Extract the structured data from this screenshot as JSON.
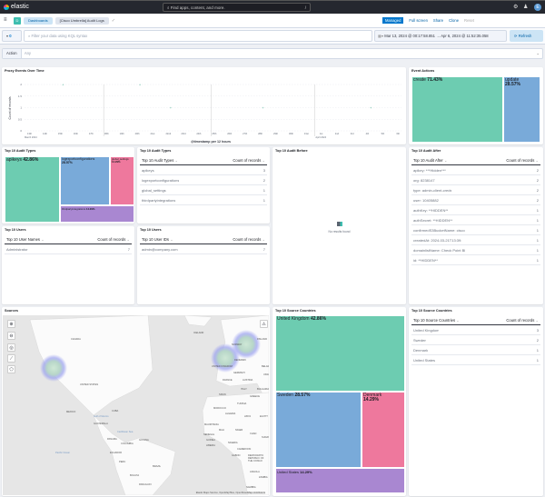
{
  "header": {
    "brand": "elastic",
    "search_placeholder": "Find apps, content, and more.",
    "search_shortcut": "/",
    "avatar": "E"
  },
  "breadcrumbs": [
    {
      "label": "Dashboards"
    },
    {
      "label": "[Cisco Umbrella] Audit Logs"
    }
  ],
  "actions": {
    "managed": "Managed",
    "fullscreen": "Full screen",
    "share": "Share",
    "clone": "Clone",
    "reset": "Reset"
  },
  "query": {
    "placeholder": "Filter your data using KQL syntax",
    "filter_count": "0",
    "date_start": "Mar 13, 2024 @ 00:17:58.851",
    "arrow": "→",
    "date_end": "Apr 6, 2024 @ 11:52:35.058",
    "refresh": "Refresh"
  },
  "filter": {
    "label": "Action",
    "value": "Any"
  },
  "proxy_chart": {
    "title": "Proxy Events Over Time"
  },
  "chart_data": [
    {
      "type": "scatter",
      "title": "Proxy Events Over Time",
      "xlabel": "@timestamp per 12 hours",
      "ylabel": "Count of records",
      "ylim": [
        0,
        2
      ],
      "yticks": [
        "0",
        "0.5",
        "1",
        "1.5",
        "2"
      ],
      "xticks": [
        "13th",
        "14th",
        "15th",
        "16th",
        "17th",
        "18th",
        "19th",
        "20th",
        "21st",
        "22nd",
        "23rd",
        "24th",
        "25th",
        "26th",
        "27th",
        "28th",
        "29th",
        "30th",
        "31st",
        "1st",
        "2nd",
        "3rd",
        "4th",
        "5th",
        "6th"
      ],
      "month_labels": [
        "March 2024",
        "April 2024"
      ],
      "points": [
        {
          "x": "2024-03-15",
          "y": 2
        },
        {
          "x": "2024-03-20",
          "y": 2
        },
        {
          "x": "2024-03-22",
          "y": 1
        },
        {
          "x": "2024-03-28",
          "y": 1
        },
        {
          "x": "2024-04-04",
          "y": 1
        }
      ]
    },
    {
      "type": "treemap",
      "title": "Event Actions",
      "slices": [
        {
          "label": "create",
          "pct": "71.43%",
          "value": 71.43
        },
        {
          "label": "update",
          "pct": "28.57%",
          "value": 28.57
        }
      ]
    },
    {
      "type": "treemap",
      "title": "Top 10 Audit Types",
      "slices": [
        {
          "label": "apikeys",
          "pct": "42.86%"
        },
        {
          "label": "logexportconfigurations",
          "pct": "28.57%"
        },
        {
          "label": "global_settings",
          "pct": "14.29%"
        },
        {
          "label": "thirdpartyintegrations",
          "pct": "14.29%"
        }
      ]
    },
    {
      "type": "treemap",
      "title": "Top 10 Source Countries",
      "slices": [
        {
          "label": "United Kingdom",
          "pct": "42.86%"
        },
        {
          "label": "Sweden",
          "pct": "28.57%"
        },
        {
          "label": "Denmark",
          "pct": "14.29%"
        },
        {
          "label": "United States",
          "pct": "14.29%"
        }
      ]
    }
  ],
  "tables": {
    "audit_types": {
      "title": "Top 10 Audit Types",
      "col1": "Top 10 Audit Types",
      "col2": "Count of records",
      "rows": [
        [
          "apikeys",
          "3"
        ],
        [
          "logexportconfigurations",
          "2"
        ],
        [
          "global_settings",
          "1"
        ],
        [
          "thirdpartyintegrations",
          "1"
        ]
      ]
    },
    "audit_before": {
      "title": "Top 10 Audit Before",
      "empty": "No results found"
    },
    "audit_after": {
      "title": "Top 10 Audit After",
      "col1": "Top 10 Audit After",
      "col2": "Count of records",
      "rows": [
        [
          "apikey: ***Hidden***",
          "2"
        ],
        [
          "org: 8238147",
          "2"
        ],
        [
          "type: admin-client-creds",
          "2"
        ],
        [
          "user: 10405882",
          "2"
        ],
        [
          "authKey: **HIDDEN**",
          "1"
        ],
        [
          "authSecret: **HIDDEN**",
          "1"
        ],
        [
          "confirmedS3BucketName: cisco",
          "1"
        ],
        [
          "createdAt: 2024-03-21T13:39:",
          "1"
        ],
        [
          "domainlistName: Check Point Bl",
          "1"
        ],
        [
          "id: **HIDDEN**",
          "1"
        ]
      ]
    },
    "user_names": {
      "title": "Top 10 Users",
      "col1": "Top 10 User Names",
      "col2": "Count of records",
      "rows": [
        [
          "Administrator",
          "7"
        ]
      ]
    },
    "user_ids": {
      "title": "Top 10 Users",
      "col1": "Top 10 User IDs",
      "col2": "Count of records",
      "rows": [
        [
          "admin@company.com",
          "7"
        ]
      ]
    },
    "countries": {
      "title": "Top 10 Source Countries",
      "col1": "Top 10 Source Countries",
      "col2": "Count of records",
      "rows": [
        [
          "United Kingdom",
          "3"
        ],
        [
          "Sweden",
          "2"
        ],
        [
          "Denmark",
          "1"
        ],
        [
          "United States",
          "1"
        ]
      ]
    }
  },
  "map": {
    "title": "Sources",
    "attribution": "Elastic Maps Service, OpenMapTiles, OpenStreetMap contributors",
    "labels": [
      "CANADA",
      "UNITED STATES",
      "MEXICO",
      "CUBA",
      "GUATEMALA",
      "PANAMA",
      "COLOMBIA",
      "GUYANA",
      "ECUADOR",
      "PERU",
      "BRAZIL",
      "BOLIVIA",
      "PARAGUAY",
      "ICELAND",
      "NORWAY",
      "FINLAND",
      "UNITED KINGDOM",
      "DENMARK",
      "GERMANY",
      "FRANCE",
      "AUSTRIA",
      "BELARUS",
      "UKRAINE",
      "ITALY",
      "BULGARIA",
      "SPAIN",
      "GREECE",
      "TUNISIA",
      "MOROCCO",
      "ALGERIA",
      "LIBYA",
      "EGYPT",
      "MAURITANIA",
      "MALI",
      "NIGER",
      "CHAD",
      "SUDAN",
      "SENEGAL",
      "GUINEA",
      "LIBERIA",
      "NIGERIA",
      "CAMEROON",
      "GABON",
      "DEMOCRATIC REPUBLIC OF THE CONGO",
      "ANGOLA",
      "ZAMBIA",
      "NAMIBIA",
      "Gulf of Mexico",
      "Caribbean Sea",
      "Pacific Ocean"
    ]
  },
  "colors": {
    "green": "#6dccb1",
    "blue": "#79aad9",
    "pink": "#ee789d",
    "purple": "#a987d1",
    "accent": "#0077cc"
  }
}
